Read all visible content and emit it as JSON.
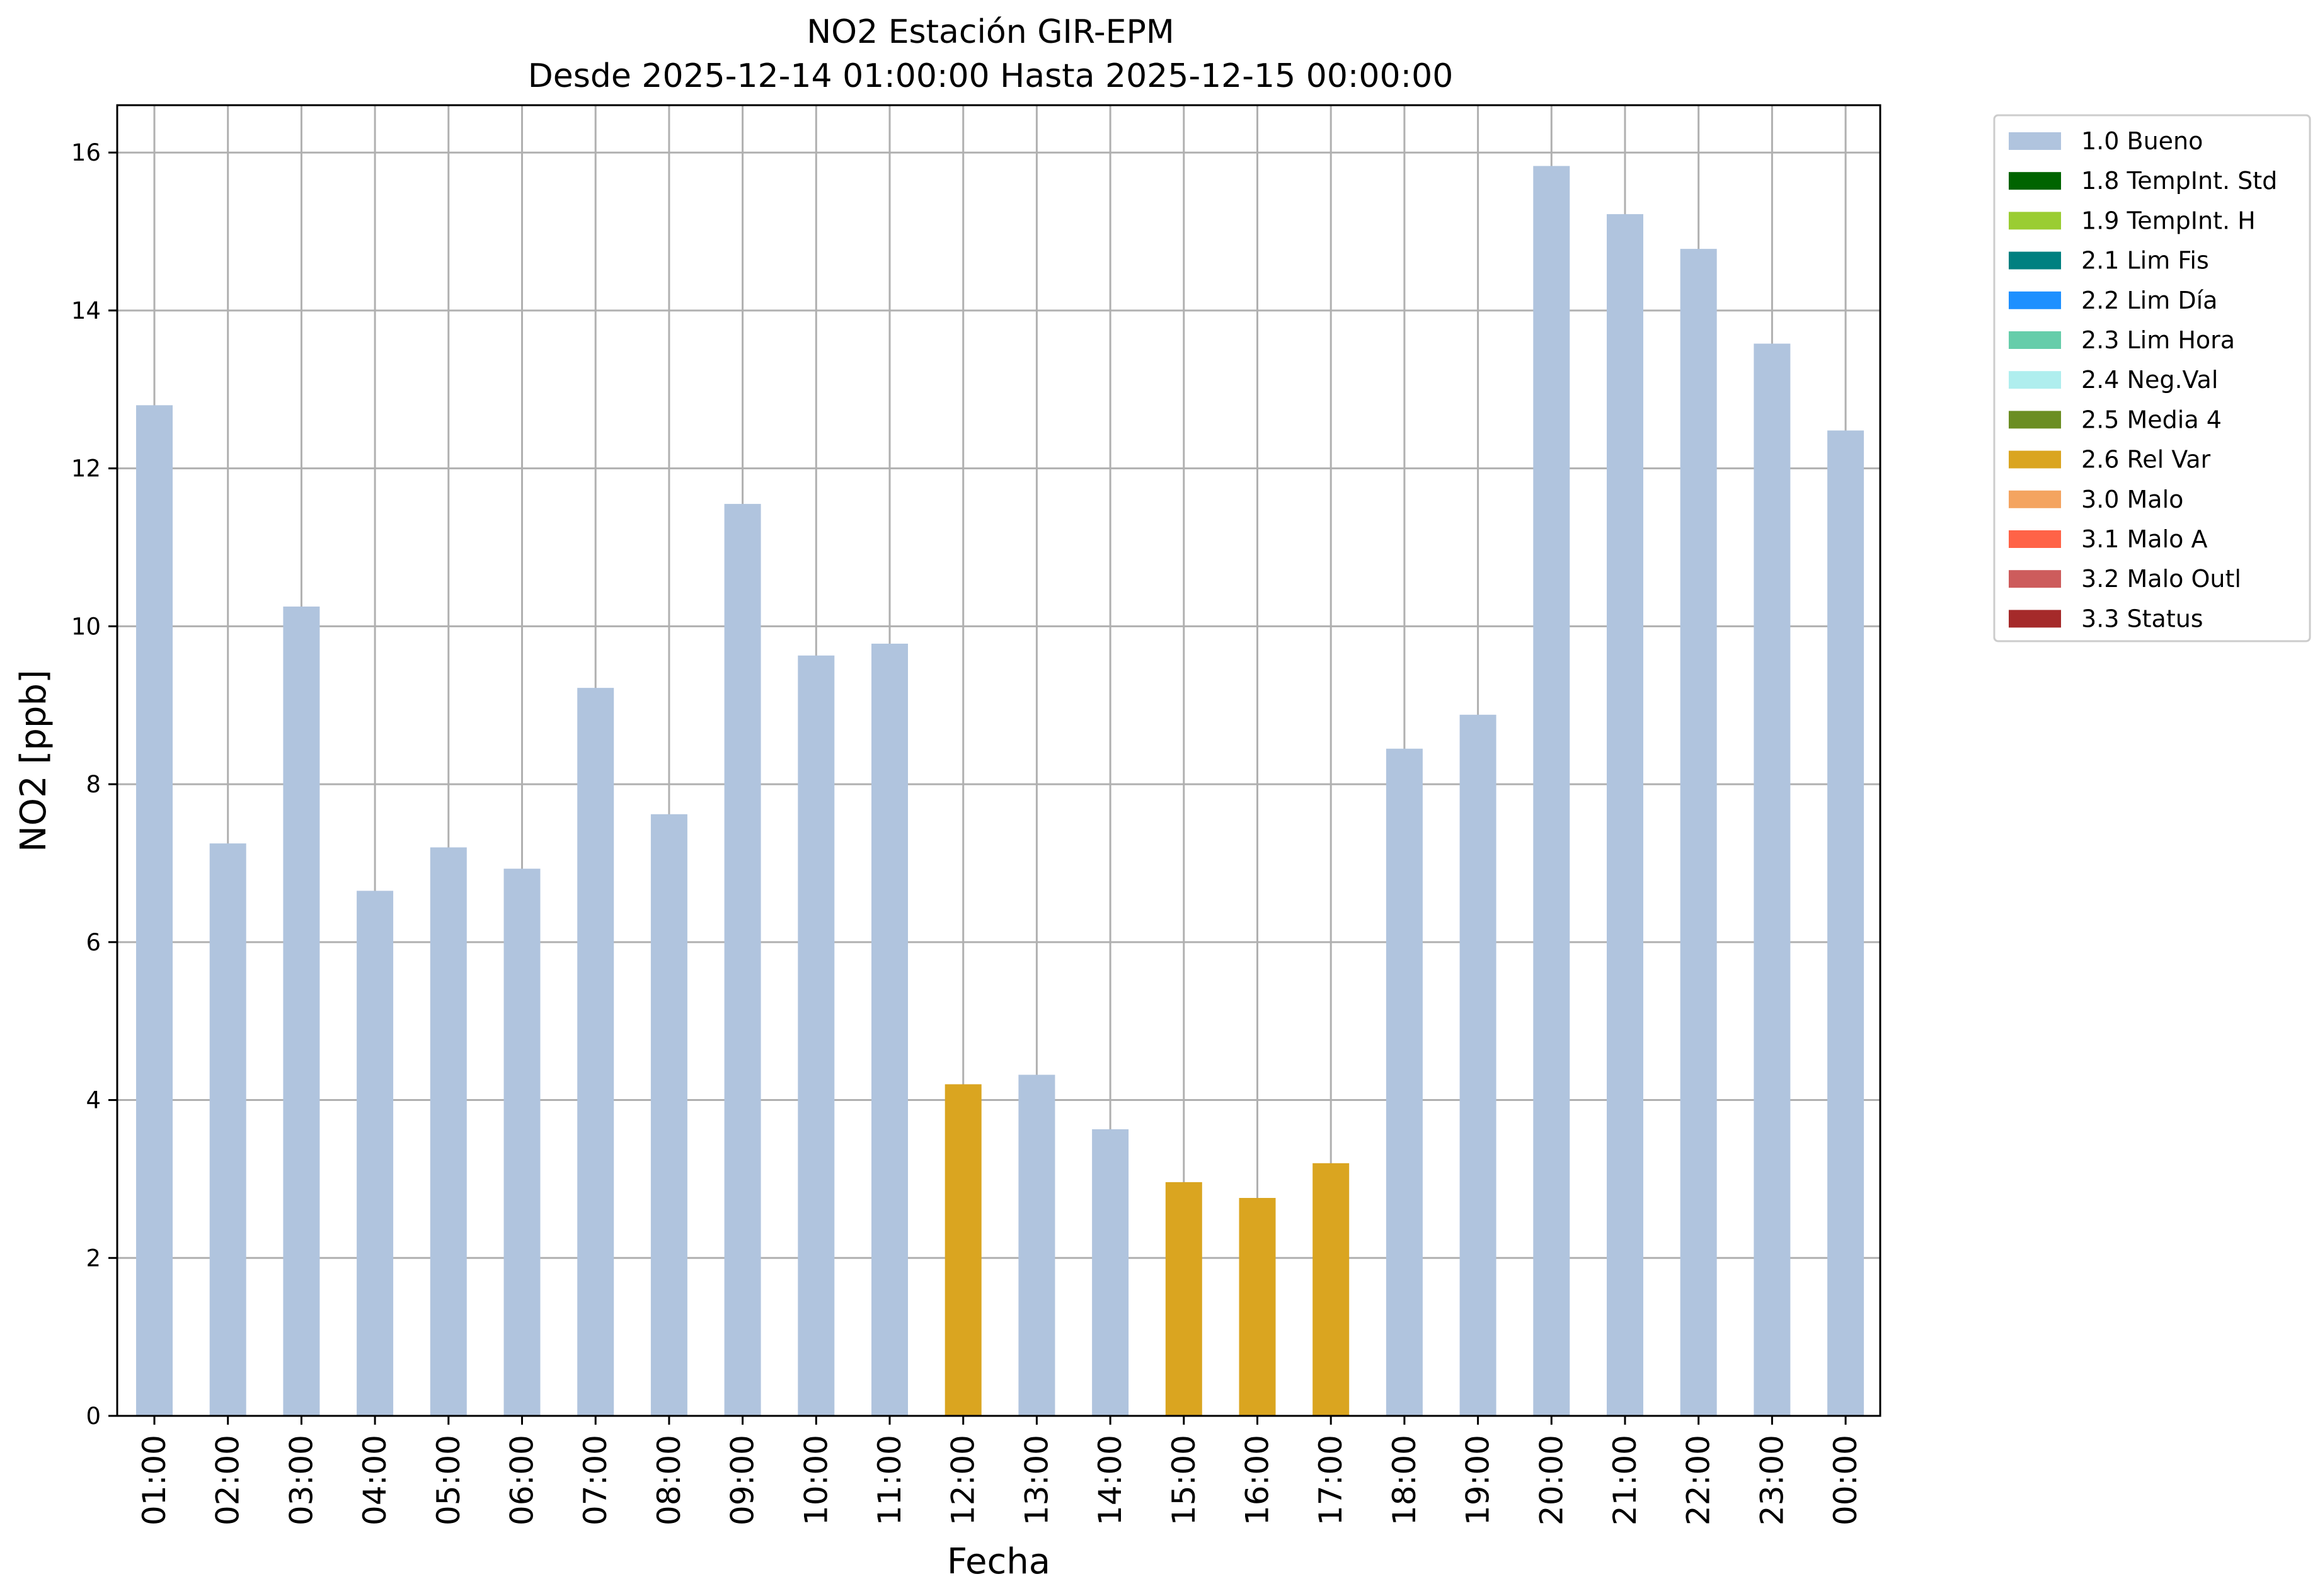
{
  "chart_data": {
    "type": "bar",
    "title": "NO2 Estación GIR-EPM",
    "subtitle": "Desde 2025-12-14 01:00:00 Hasta 2025-12-15 00:00:00",
    "xlabel": "Fecha",
    "ylabel": "NO2 [ppb]",
    "ylim": [
      0,
      16.6
    ],
    "yticks": [
      0,
      2,
      4,
      6,
      8,
      10,
      12,
      14,
      16
    ],
    "grid": true,
    "legend_position": "outside-right-top",
    "categories": [
      "01:00",
      "02:00",
      "03:00",
      "04:00",
      "05:00",
      "06:00",
      "07:00",
      "08:00",
      "09:00",
      "10:00",
      "11:00",
      "12:00",
      "13:00",
      "14:00",
      "15:00",
      "16:00",
      "17:00",
      "18:00",
      "19:00",
      "20:00",
      "21:00",
      "22:00",
      "23:00",
      "00:00"
    ],
    "values": [
      12.8,
      7.25,
      10.25,
      6.65,
      7.2,
      6.93,
      9.22,
      7.62,
      11.55,
      9.63,
      9.78,
      4.2,
      4.32,
      3.63,
      2.96,
      2.76,
      3.2,
      8.45,
      8.88,
      15.83,
      15.22,
      14.78,
      13.58,
      12.48
    ],
    "flags": [
      "1.0 Bueno",
      "1.0 Bueno",
      "1.0 Bueno",
      "1.0 Bueno",
      "1.0 Bueno",
      "1.0 Bueno",
      "1.0 Bueno",
      "1.0 Bueno",
      "1.0 Bueno",
      "1.0 Bueno",
      "1.0 Bueno",
      "2.6 Rel Var",
      "1.0 Bueno",
      "1.0 Bueno",
      "2.6 Rel Var",
      "2.6 Rel Var",
      "2.6 Rel Var",
      "1.0 Bueno",
      "1.0 Bueno",
      "1.0 Bueno",
      "1.0 Bueno",
      "1.0 Bueno",
      "1.0 Bueno",
      "1.0 Bueno"
    ],
    "legend": [
      {
        "label": "1.0 Bueno",
        "color": "#b0c4de"
      },
      {
        "label": "1.8 TempInt. Std",
        "color": "#006400"
      },
      {
        "label": "1.9 TempInt. H",
        "color": "#9acd32"
      },
      {
        "label": "2.1 Lim Fis",
        "color": "#008080"
      },
      {
        "label": "2.2 Lim Día",
        "color": "#1e90ff"
      },
      {
        "label": "2.3 Lim Hora",
        "color": "#66cdaa"
      },
      {
        "label": "2.4 Neg.Val",
        "color": "#afeeee"
      },
      {
        "label": "2.5 Media 4",
        "color": "#6b8e23"
      },
      {
        "label": "2.6 Rel Var",
        "color": "#daa520"
      },
      {
        "label": "3.0 Malo",
        "color": "#f4a460"
      },
      {
        "label": "3.1 Malo A",
        "color": "#ff6347"
      },
      {
        "label": "3.2 Malo Outl",
        "color": "#cd5c5c"
      },
      {
        "label": "3.3 Status",
        "color": "#a52a2a"
      }
    ]
  }
}
